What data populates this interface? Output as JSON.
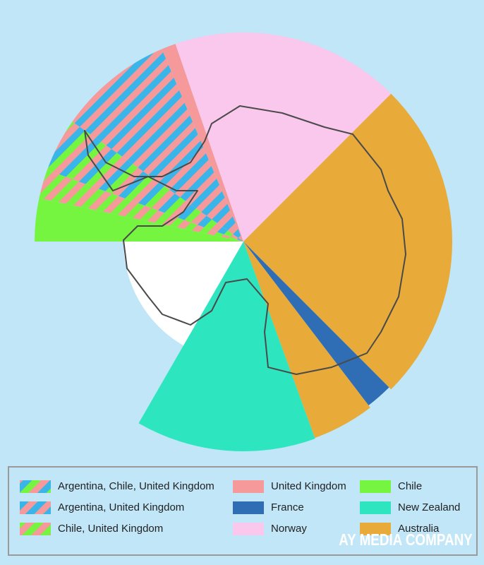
{
  "legend": {
    "items": [
      {
        "label": "Argentina, Chile, United Kingdom",
        "colors": [
          "#75f540",
          "#f5999a",
          "#3ab5ea"
        ]
      },
      {
        "label": "Argentina, United Kingdom",
        "colors": [
          "#3ab5ea",
          "#f5999a"
        ]
      },
      {
        "label": "Chile, United Kingdom",
        "colors": [
          "#75f540",
          "#f5999a"
        ]
      },
      {
        "label": "United Kingdom",
        "colors": [
          "#f5999a"
        ]
      },
      {
        "label": "France",
        "colors": [
          "#2f6db5"
        ]
      },
      {
        "label": "Norway",
        "colors": [
          "#f9c8ec"
        ]
      },
      {
        "label": "Chile",
        "colors": [
          "#75f540"
        ]
      },
      {
        "label": "New Zealand",
        "colors": [
          "#2de6bf"
        ]
      },
      {
        "label": "Australia",
        "colors": [
          "#e8aa38"
        ]
      }
    ]
  },
  "watermark": "AY MEDIA COMPANY"
}
